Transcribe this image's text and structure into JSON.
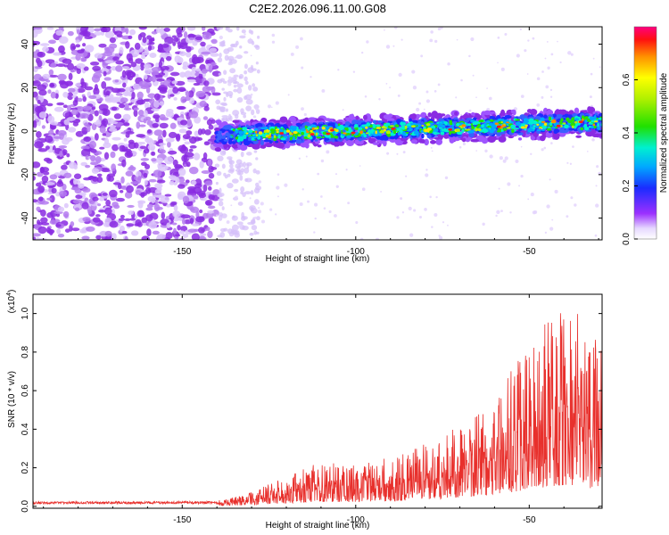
{
  "title": "C2E2.2026.096.11.00.G08",
  "chart_data": [
    {
      "type": "heatmap",
      "name": "spectrogram",
      "xlabel": "Height of straight line (km)",
      "ylabel": "Frequency (Hz)",
      "xlim": [
        -193,
        -29
      ],
      "ylim": [
        -50,
        48
      ],
      "xticks": [
        -150,
        -100,
        -50
      ],
      "xtick_labels": [
        "-150",
        "-100",
        "-50"
      ],
      "yticks": [
        40,
        20,
        0,
        -20,
        -40
      ],
      "ytick_labels": [
        "40",
        "20",
        "0",
        "-20",
        "-40"
      ],
      "signal_band": {
        "x_start": -140,
        "x_end": -29,
        "center_hz_start": -2,
        "center_hz_end": 4,
        "half_width_hz": 5
      },
      "noise_region": {
        "x_start": -193,
        "x_end": -140,
        "fade_x_end": -128
      },
      "colorbar": {
        "label": "Normalized spectral amplitude",
        "range": [
          0.0,
          0.8
        ],
        "ticks": [
          0.0,
          0.2,
          0.4,
          0.6
        ],
        "tick_labels": [
          "0.0",
          "0.2",
          "0.4",
          "0.6"
        ]
      }
    },
    {
      "type": "line",
      "name": "snr",
      "xlabel": "Height of straight line (km)",
      "ylabel": "SNR (10 * v/v)",
      "y_multiplier": "(x10",
      "y_multiplier_exp": "4",
      "y_multiplier_close": ")",
      "xlim": [
        -193,
        -29
      ],
      "ylim": [
        -0.01,
        1.1
      ],
      "xticks": [
        -150,
        -100,
        -50
      ],
      "xtick_labels": [
        "-150",
        "-100",
        "-50"
      ],
      "yticks": [
        0.0,
        0.2,
        0.4,
        0.6,
        0.8,
        1.0
      ],
      "ytick_labels": [
        "0.0",
        "0.2",
        "0.4",
        "0.6",
        "0.8",
        "1.0"
      ],
      "series_color": "#e8302c",
      "envelope": {
        "x": [
          -193,
          -140,
          -132,
          -125,
          -110,
          -100,
          -90,
          -80,
          -70,
          -60,
          -50,
          -45,
          -40,
          -35,
          -29
        ],
        "y": [
          0.02,
          0.025,
          0.05,
          0.1,
          0.2,
          0.18,
          0.22,
          0.28,
          0.36,
          0.5,
          0.72,
          0.82,
          0.9,
          0.85,
          0.7
        ]
      }
    }
  ]
}
